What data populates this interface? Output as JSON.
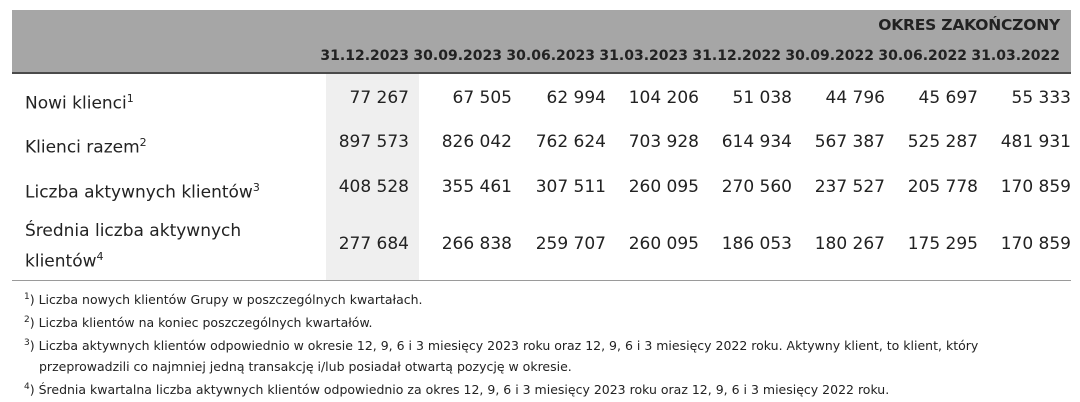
{
  "header": {
    "period_label": "OKRES ZAKOŃCZONY",
    "dates": [
      "31.12.2023",
      "30.09.2023",
      "30.06.2023",
      "31.03.2023",
      "31.12.2022",
      "30.09.2022",
      "30.06.2022",
      "31.03.2022"
    ]
  },
  "rows": [
    {
      "label": "Nowi klienci",
      "sup": "1",
      "values": [
        "77 267",
        "67 505",
        "62 994",
        "104 206",
        "51 038",
        "44 796",
        "45 697",
        "55 333"
      ]
    },
    {
      "label": "Klienci razem",
      "sup": "2",
      "values": [
        "897 573",
        "826 042",
        "762 624",
        "703 928",
        "614 934",
        "567 387",
        "525 287",
        "481 931"
      ]
    },
    {
      "label": "Liczba aktywnych klientów",
      "sup": "3",
      "values": [
        "408 528",
        "355 461",
        "307 511",
        "260 095",
        "270 560",
        "237 527",
        "205 778",
        "170 859"
      ]
    },
    {
      "label_line1": "Średnia liczba aktywnych",
      "label_line2": "klientów",
      "sup": "4",
      "values": [
        "277 684",
        "266 838",
        "259 707",
        "260 095",
        "186 053",
        "180 267",
        "175 295",
        "170 859"
      ]
    }
  ],
  "notes": {
    "n1": {
      "sup": "1",
      "text": ") Liczba nowych klientów Grupy w poszczególnych kwartałach."
    },
    "n2": {
      "sup": "2",
      "text": ") Liczba klientów na koniec poszczególnych kwartałów."
    },
    "n3": {
      "sup": "3",
      "text": ") Liczba aktywnych klientów odpowiednio w okresie 12, 9, 6 i 3 miesięcy 2023 roku oraz 12, 9, 6 i 3 miesięcy 2022 roku. Aktywny klient, to klient, który",
      "cont": "przeprowadzili co najmniej jedną transakcję i/lub posiadał otwartą pozycję w okresie."
    },
    "n4": {
      "sup": "4",
      "text": ") Średnia kwartalna liczba aktywnych klientów odpowiednio za okres 12, 9, 6 i 3 miesięcy 2023 roku oraz 12, 9, 6 i 3 miesięcy 2022 roku."
    }
  }
}
